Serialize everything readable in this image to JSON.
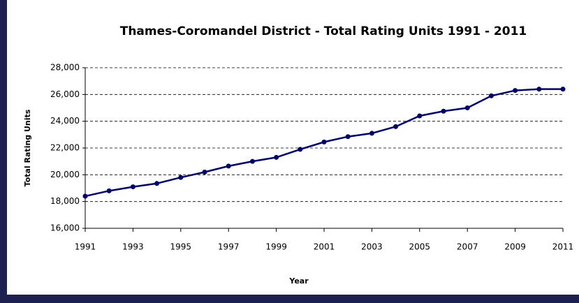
{
  "chart_data": {
    "type": "line",
    "title": "Thames-Coromandel District - Total Rating Units 1991 - 2011",
    "x_label": "Year",
    "y_label": "Total Rating Units",
    "x": [
      1991,
      1992,
      1993,
      1994,
      1995,
      1996,
      1997,
      1998,
      1999,
      2000,
      2001,
      2002,
      2003,
      2004,
      2005,
      2006,
      2007,
      2008,
      2009,
      2010,
      2011
    ],
    "series": [
      {
        "name": "Total Rating Units",
        "color": "#000066",
        "values": [
          18400,
          18800,
          19100,
          19350,
          19800,
          20200,
          20650,
          21000,
          21300,
          21900,
          22450,
          22850,
          23100,
          23600,
          24400,
          24750,
          25000,
          25900,
          26300,
          26400,
          26400
        ]
      }
    ],
    "xlim": [
      1991,
      2011
    ],
    "xticks": [
      1991,
      1993,
      1995,
      1997,
      1999,
      2001,
      2003,
      2005,
      2007,
      2009,
      2011
    ],
    "ylim": [
      16000,
      28000
    ],
    "yticks": [
      {
        "value": 16000,
        "label": "16,000"
      },
      {
        "value": 18000,
        "label": "18,000"
      },
      {
        "value": 20000,
        "label": "20,000"
      },
      {
        "value": 22000,
        "label": "22,000"
      },
      {
        "value": 24000,
        "label": "24,000"
      },
      {
        "value": 26000,
        "label": "26,000"
      },
      {
        "value": 28000,
        "label": "28,000"
      }
    ],
    "grid": true
  }
}
